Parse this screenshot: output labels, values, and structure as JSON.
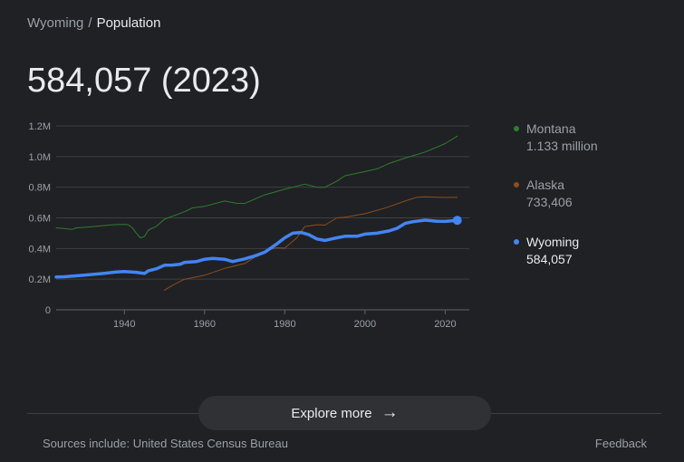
{
  "breadcrumb": {
    "parent": "Wyoming",
    "separator": "/",
    "current": "Population"
  },
  "headline": "584,057 (2023)",
  "legend": [
    {
      "name": "Montana",
      "value": "1.133 million",
      "color": "#2e7d32"
    },
    {
      "name": "Alaska",
      "value": "733,406",
      "color": "#8d4e1d"
    },
    {
      "name": "Wyoming",
      "value": "584,057",
      "color": "#4285f4"
    }
  ],
  "explore": {
    "label": "Explore more",
    "icon": "arrow-right-icon"
  },
  "footer": {
    "sources": "Sources include: United States Census Bureau",
    "feedback": "Feedback"
  },
  "chart_data": {
    "type": "line",
    "xlim": [
      1923,
      2026
    ],
    "ylim": [
      0,
      1200000
    ],
    "yticks": [
      {
        "value": 0,
        "label": "0"
      },
      {
        "value": 200000,
        "label": "0.2M"
      },
      {
        "value": 400000,
        "label": "0.4M"
      },
      {
        "value": 600000,
        "label": "0.6M"
      },
      {
        "value": 800000,
        "label": "0.8M"
      },
      {
        "value": 1000000,
        "label": "1.0M"
      },
      {
        "value": 1200000,
        "label": "1.2M"
      }
    ],
    "xticks": [
      {
        "value": 1940,
        "label": "1940"
      },
      {
        "value": 1960,
        "label": "1960"
      },
      {
        "value": 1980,
        "label": "1980"
      },
      {
        "value": 2000,
        "label": "2000"
      },
      {
        "value": 2020,
        "label": "2020"
      }
    ],
    "grid": true,
    "series": [
      {
        "name": "Montana",
        "color": "#2e7d32",
        "width": 1,
        "x": [
          1923,
          1925,
          1927,
          1928,
          1930,
          1935,
          1937,
          1940,
          1941,
          1942,
          1943,
          1944,
          1945,
          1946,
          1948,
          1950,
          1955,
          1957,
          1960,
          1965,
          1968,
          1970,
          1975,
          1980,
          1985,
          1988,
          1990,
          1993,
          1995,
          2000,
          2003,
          2006,
          2010,
          2015,
          2020,
          2023
        ],
        "y": [
          535000,
          530000,
          525000,
          535000,
          538000,
          550000,
          555000,
          558000,
          555000,
          535000,
          500000,
          470000,
          478000,
          520000,
          545000,
          591000,
          640000,
          665000,
          675000,
          710000,
          695000,
          694000,
          750000,
          787000,
          820000,
          800000,
          800000,
          840000,
          875000,
          902000,
          920000,
          955000,
          990000,
          1030000,
          1085000,
          1133000
        ]
      },
      {
        "name": "Alaska",
        "color": "#8d4e1d",
        "width": 1,
        "x": [
          1950,
          1952,
          1955,
          1958,
          1960,
          1965,
          1970,
          1975,
          1978,
          1980,
          1983,
          1985,
          1988,
          1990,
          1993,
          1995,
          2000,
          2005,
          2010,
          2013,
          2015,
          2018,
          2020,
          2023
        ],
        "y": [
          128000,
          160000,
          200000,
          215000,
          226000,
          270000,
          302000,
          384000,
          405000,
          402000,
          470000,
          543000,
          555000,
          553000,
          600000,
          604000,
          627000,
          664000,
          710000,
          735000,
          738000,
          735000,
          733000,
          733406
        ]
      },
      {
        "name": "Wyoming",
        "color": "#4285f4",
        "width": 3.5,
        "x": [
          1923,
          1925,
          1930,
          1935,
          1938,
          1940,
          1943,
          1945,
          1946,
          1948,
          1950,
          1952,
          1954,
          1955,
          1958,
          1960,
          1962,
          1965,
          1967,
          1970,
          1973,
          1975,
          1978,
          1980,
          1982,
          1984,
          1986,
          1988,
          1990,
          1993,
          1995,
          1998,
          2000,
          2003,
          2006,
          2008,
          2010,
          2012,
          2015,
          2018,
          2020,
          2023
        ],
        "y": [
          214000,
          216000,
          226000,
          238000,
          247000,
          250000,
          245000,
          237000,
          255000,
          268000,
          291000,
          292000,
          298000,
          310000,
          315000,
          330000,
          335000,
          330000,
          315000,
          332000,
          356000,
          376000,
          430000,
          470000,
          500000,
          505000,
          490000,
          462000,
          453000,
          470000,
          480000,
          480000,
          494000,
          500000,
          515000,
          532000,
          564000,
          575000,
          585000,
          578000,
          577000,
          584057
        ]
      }
    ],
    "highlight": {
      "series": "Wyoming",
      "x": 2023,
      "y": 584057
    }
  }
}
